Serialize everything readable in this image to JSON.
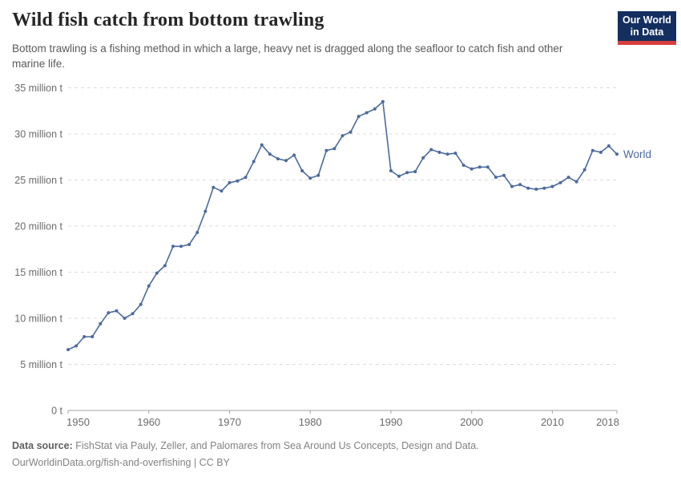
{
  "header": {
    "title": "Wild fish catch from bottom trawling",
    "subtitle": "Bottom trawling is a fishing method in which a large, heavy net is dragged along the seafloor to catch fish and other marine life.",
    "logo": {
      "line1": "Our World",
      "line2": "in Data",
      "bg_color": "#142f5f",
      "bar_color": "#d63f3f"
    }
  },
  "chart_data": {
    "type": "line",
    "title": "Wild fish catch from bottom trawling",
    "xlabel": "",
    "ylabel": "",
    "xlim": [
      1950,
      2018
    ],
    "ylim": [
      0,
      35
    ],
    "x_ticks": [
      1950,
      1960,
      1970,
      1980,
      1990,
      2000,
      2010,
      2018
    ],
    "y_ticks": [
      0,
      5,
      10,
      15,
      20,
      25,
      30,
      35
    ],
    "y_tick_suffix": " million t",
    "y_zero_label": "0 t",
    "grid": "horizontal-dashed",
    "legend": "label-at-line-end",
    "series": [
      {
        "name": "World",
        "color": "#4C6A9C",
        "x": [
          1950,
          1951,
          1952,
          1953,
          1954,
          1955,
          1956,
          1957,
          1958,
          1959,
          1960,
          1961,
          1962,
          1963,
          1964,
          1965,
          1966,
          1967,
          1968,
          1969,
          1970,
          1971,
          1972,
          1973,
          1974,
          1975,
          1976,
          1977,
          1978,
          1979,
          1980,
          1981,
          1982,
          1983,
          1984,
          1985,
          1986,
          1987,
          1988,
          1989,
          1990,
          1991,
          1992,
          1993,
          1994,
          1995,
          1996,
          1997,
          1998,
          1999,
          2000,
          2001,
          2002,
          2003,
          2004,
          2005,
          2006,
          2007,
          2008,
          2009,
          2010,
          2011,
          2012,
          2013,
          2014,
          2015,
          2016,
          2017,
          2018
        ],
        "values": [
          6.6,
          7.0,
          8.0,
          8.0,
          9.4,
          10.6,
          10.8,
          10.0,
          10.5,
          11.5,
          13.5,
          14.9,
          15.7,
          17.8,
          17.8,
          18.0,
          19.3,
          21.6,
          24.2,
          23.8,
          24.7,
          24.9,
          25.3,
          27.0,
          28.8,
          27.8,
          27.3,
          27.1,
          27.7,
          26.0,
          25.2,
          25.5,
          28.2,
          28.4,
          29.8,
          30.2,
          31.9,
          32.3,
          32.7,
          33.5,
          26.0,
          25.4,
          25.8,
          25.9,
          27.4,
          28.3,
          28.0,
          27.8,
          27.9,
          26.6,
          26.2,
          26.4,
          26.4,
          25.3,
          25.5,
          24.3,
          24.5,
          24.1,
          24.0,
          24.1,
          24.3,
          24.7,
          25.3,
          24.8,
          26.1,
          28.2,
          28.0,
          28.7,
          27.8
        ]
      }
    ]
  },
  "colors": {
    "grid": "#dcdcdc",
    "axis": "#a3a3a3",
    "tick_label": "#6b6b6b",
    "series": "#4C6A9C"
  },
  "footer": {
    "source_label": "Data source:",
    "source_text": " FishStat via Pauly, Zeller, and Palomares from Sea Around Us Concepts, Design and Data.",
    "link_line": "OurWorldinData.org/fish-and-overfishing | CC BY"
  }
}
